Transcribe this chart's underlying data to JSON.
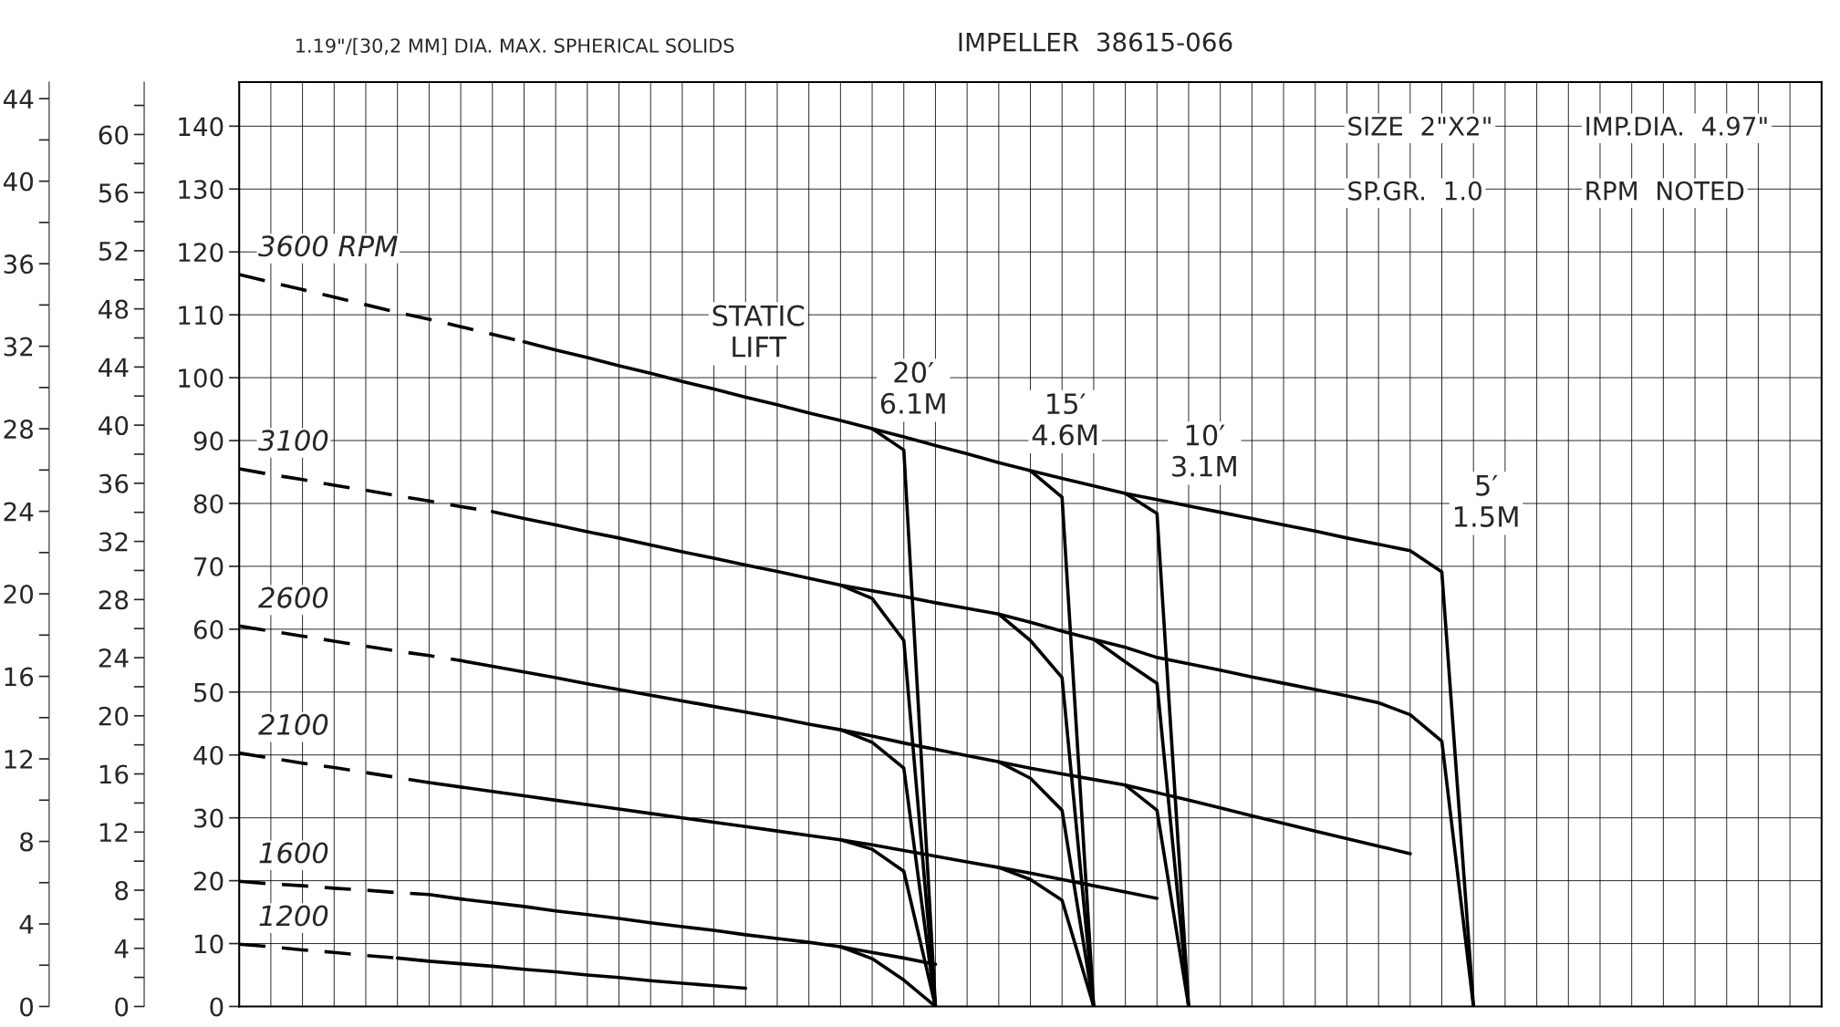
{
  "chart_data": {
    "type": "line",
    "categories": [
      null,
      null,
      null,
      null,
      null,
      null,
      null,
      null,
      null,
      null,
      null,
      null,
      null,
      null,
      null,
      null,
      null,
      null,
      null,
      null,
      null,
      null,
      null,
      null,
      null,
      null,
      null,
      null,
      null,
      null,
      null,
      null,
      null,
      null,
      null,
      null,
      null,
      null,
      null,
      null,
      null,
      null,
      null,
      null,
      null,
      null,
      null,
      null,
      null,
      null,
      null
    ],
    "ylim": [
      0,
      147
    ],
    "yticks": [
      0,
      10,
      20,
      30,
      40,
      50,
      60,
      70,
      80,
      90,
      100,
      110,
      120,
      130,
      140
    ],
    "y2lim": [
      0,
      63.6
    ],
    "y2ticks": [
      0,
      4,
      8,
      12,
      16,
      20,
      24,
      28,
      32,
      36,
      40,
      44,
      48,
      52,
      56,
      60
    ],
    "y3lim": [
      0,
      44.8
    ],
    "y3ticks": [
      0,
      4,
      8,
      12,
      16,
      20,
      24,
      28,
      32,
      36,
      40,
      44
    ],
    "tick_labels": "y",
    "grid": true,
    "legend": false,
    "marker": "none",
    "line_style": "solid",
    "annotations": [
      "1.19\"/[30,2 MM] DIA. MAX. SPHERICAL SOLIDS",
      "IMPELLER  38615-066",
      "SIZE  2\"X2\"",
      "IMP.DIA.  4.97\"",
      "SP.GR.  1.0",
      "RPM  NOTED",
      "STATIC\nLIFT",
      "20′\n6.1M",
      "15′\n4.6M",
      "10′\n3.1M",
      "5′\n1.5M"
    ],
    "series": [
      {
        "name": "3600 RPM",
        "color": "#000000",
        "line_style": "dashed",
        "values": [
          116.4,
          115.2,
          114.0,
          112.8,
          111.6,
          110.4,
          109.3,
          108.1,
          106.9,
          105.7,
          null,
          null,
          null,
          null,
          null,
          null,
          null,
          null,
          null,
          null,
          null,
          null,
          null,
          null,
          null,
          null,
          null,
          null,
          null,
          null,
          null,
          null,
          null,
          null,
          null,
          null,
          null,
          null,
          null,
          null,
          null,
          null,
          null,
          null,
          null,
          null,
          null,
          null,
          null,
          null,
          null
        ]
      },
      {
        "color": "#000000",
        "values": [
          null,
          null,
          null,
          null,
          null,
          null,
          null,
          null,
          null,
          105.7,
          104.4,
          103.2,
          101.9,
          100.7,
          99.4,
          98.2,
          96.9,
          95.7,
          94.4,
          93.2,
          91.9,
          90.6,
          89.2,
          87.9,
          86.5,
          85.2,
          84.0,
          82.8,
          81.6,
          80.6,
          79.6,
          78.6,
          77.6,
          76.6,
          75.6,
          74.5,
          73.5,
          72.5,
          69.1,
          0,
          null,
          null,
          null,
          null,
          null,
          null,
          null,
          null,
          null,
          null,
          null
        ]
      },
      {
        "color": "#000000",
        "values": [
          null,
          null,
          null,
          null,
          null,
          null,
          null,
          null,
          null,
          null,
          null,
          null,
          null,
          null,
          null,
          null,
          null,
          null,
          null,
          null,
          91.9,
          88.5,
          0,
          null,
          null,
          null,
          null,
          null,
          null,
          null,
          null,
          null,
          null,
          null,
          null,
          null,
          null,
          null,
          null,
          null,
          null,
          null,
          null,
          null,
          null,
          null,
          null,
          null,
          null,
          null,
          null
        ]
      },
      {
        "color": "#000000",
        "values": [
          null,
          null,
          null,
          null,
          null,
          null,
          null,
          null,
          null,
          null,
          null,
          null,
          null,
          null,
          null,
          null,
          null,
          null,
          null,
          null,
          null,
          null,
          null,
          null,
          null,
          85.2,
          81,
          0,
          null,
          null,
          null,
          null,
          null,
          null,
          null,
          null,
          null,
          null,
          null,
          null,
          null,
          null,
          null,
          null,
          null,
          null,
          null,
          null,
          null,
          null,
          null
        ]
      },
      {
        "color": "#000000",
        "values": [
          null,
          null,
          null,
          null,
          null,
          null,
          null,
          null,
          null,
          null,
          null,
          null,
          null,
          null,
          null,
          null,
          null,
          null,
          null,
          null,
          null,
          null,
          null,
          null,
          null,
          null,
          null,
          null,
          81.6,
          78.4,
          0,
          null,
          null,
          null,
          null,
          null,
          null,
          null,
          null,
          null,
          null,
          null,
          null,
          null,
          null,
          null,
          null,
          null,
          null,
          null,
          null
        ]
      },
      {
        "name": "3100",
        "color": "#000000",
        "line_style": "dashed",
        "values": [
          85.5,
          84.6,
          83.8,
          82.9,
          82.1,
          81.2,
          80.4,
          79.5,
          78.7,
          null,
          null,
          null,
          null,
          null,
          null,
          null,
          null,
          null,
          null,
          null,
          null,
          null,
          null,
          null,
          null,
          null,
          null,
          null,
          null,
          null,
          null,
          null,
          null,
          null,
          null,
          null,
          null,
          null,
          null,
          null,
          null,
          null,
          null,
          null,
          null,
          null,
          null,
          null,
          null,
          null,
          null
        ]
      },
      {
        "color": "#000000",
        "values": [
          null,
          null,
          null,
          null,
          null,
          null,
          null,
          null,
          78.7,
          77.6,
          76.6,
          75.5,
          74.5,
          73.4,
          72.3,
          71.3,
          70.2,
          69.2,
          68.1,
          67.0,
          66.1,
          65.2,
          64.2,
          63.3,
          62.4,
          61.1,
          59.7,
          58.4,
          57.1,
          55.5,
          54.5,
          53.5,
          52.4,
          51.4,
          50.4,
          49.4,
          48.3,
          46.4,
          42.2,
          0,
          null,
          null,
          null,
          null,
          null,
          null,
          null,
          null,
          null,
          null,
          null
        ]
      },
      {
        "color": "#000000",
        "values": [
          null,
          null,
          null,
          null,
          null,
          null,
          null,
          null,
          null,
          null,
          null,
          null,
          null,
          null,
          null,
          null,
          null,
          null,
          null,
          67.0,
          64.9,
          58.2,
          0,
          null,
          null,
          null,
          null,
          null,
          null,
          null,
          null,
          null,
          null,
          null,
          null,
          null,
          null,
          null,
          null,
          null,
          null,
          null,
          null,
          null,
          null,
          null,
          null,
          null,
          null,
          null,
          null
        ]
      },
      {
        "color": "#000000",
        "values": [
          null,
          null,
          null,
          null,
          null,
          null,
          null,
          null,
          null,
          null,
          null,
          null,
          null,
          null,
          null,
          null,
          null,
          null,
          null,
          null,
          null,
          null,
          null,
          null,
          62.4,
          58.2,
          52.3,
          0,
          null,
          null,
          null,
          null,
          null,
          null,
          null,
          null,
          null,
          null,
          null,
          null,
          null,
          null,
          null,
          null,
          null,
          null,
          null,
          null,
          null,
          null,
          null
        ]
      },
      {
        "color": "#000000",
        "values": [
          null,
          null,
          null,
          null,
          null,
          null,
          null,
          null,
          null,
          null,
          null,
          null,
          null,
          null,
          null,
          null,
          null,
          null,
          null,
          null,
          null,
          null,
          null,
          null,
          null,
          null,
          null,
          58.4,
          54.8,
          51.4,
          0,
          null,
          null,
          null,
          null,
          null,
          null,
          null,
          null,
          null,
          null,
          null,
          null,
          null,
          null,
          null,
          null,
          null,
          null,
          null,
          null
        ]
      },
      {
        "name": "2600",
        "color": "#000000",
        "line_style": "dashed",
        "values": [
          60.5,
          59.7,
          58.9,
          58.1,
          57.3,
          56.5,
          55.8,
          55.0,
          null,
          null,
          null,
          null,
          null,
          null,
          null,
          null,
          null,
          null,
          null,
          null,
          null,
          null,
          null,
          null,
          null,
          null,
          null,
          null,
          null,
          null,
          null,
          null,
          null,
          null,
          null,
          null,
          null,
          null,
          null,
          null,
          null,
          null,
          null,
          null,
          null,
          null,
          null,
          null,
          null,
          null,
          null
        ]
      },
      {
        "color": "#000000",
        "values": [
          null,
          null,
          null,
          null,
          null,
          null,
          null,
          55.0,
          54.1,
          53.2,
          52.3,
          51.3,
          50.4,
          49.5,
          48.6,
          47.7,
          46.8,
          45.9,
          44.9,
          44.0,
          43.0,
          41.9,
          40.9,
          39.9,
          38.9,
          37.9,
          37.0,
          36.1,
          35.2,
          34.0,
          32.8,
          31.6,
          30.3,
          29.1,
          27.9,
          26.7,
          25.5,
          24.3,
          null,
          null,
          null,
          null,
          null,
          null,
          null,
          null,
          null,
          null,
          null,
          null,
          null
        ]
      },
      {
        "color": "#000000",
        "values": [
          null,
          null,
          null,
          null,
          null,
          null,
          null,
          null,
          null,
          null,
          null,
          null,
          null,
          null,
          null,
          null,
          null,
          null,
          null,
          44.0,
          42.0,
          37.9,
          0,
          null,
          null,
          null,
          null,
          null,
          null,
          null,
          null,
          null,
          null,
          null,
          null,
          null,
          null,
          null,
          null,
          null,
          null,
          null,
          null,
          null,
          null,
          null,
          null,
          null,
          null,
          null,
          null
        ]
      },
      {
        "color": "#000000",
        "values": [
          null,
          null,
          null,
          null,
          null,
          null,
          null,
          null,
          null,
          null,
          null,
          null,
          null,
          null,
          null,
          null,
          null,
          null,
          null,
          null,
          null,
          null,
          null,
          null,
          38.9,
          36.3,
          31.2,
          0,
          null,
          null,
          null,
          null,
          null,
          null,
          null,
          null,
          null,
          null,
          null,
          null,
          null,
          null,
          null,
          null,
          null,
          null,
          null,
          null,
          null,
          null,
          null
        ]
      },
      {
        "color": "#000000",
        "values": [
          null,
          null,
          null,
          null,
          null,
          null,
          null,
          null,
          null,
          null,
          null,
          null,
          null,
          null,
          null,
          null,
          null,
          null,
          null,
          null,
          null,
          null,
          null,
          null,
          null,
          null,
          null,
          null,
          35.2,
          31.2,
          0,
          null,
          null,
          null,
          null,
          null,
          null,
          null,
          null,
          null,
          null,
          null,
          null,
          null,
          null,
          null,
          null,
          null,
          null,
          null,
          null
        ]
      },
      {
        "name": "2100",
        "color": "#000000",
        "line_style": "dashed",
        "values": [
          40.3,
          39.5,
          38.7,
          38.0,
          37.2,
          36.4,
          35.6,
          null,
          null,
          null,
          null,
          null,
          null,
          null,
          null,
          null,
          null,
          null,
          null,
          null,
          null,
          null,
          null,
          null,
          null,
          null,
          null,
          null,
          null,
          null,
          null,
          null,
          null,
          null,
          null,
          null,
          null,
          null,
          null,
          null,
          null,
          null,
          null,
          null,
          null,
          null,
          null,
          null,
          null,
          null,
          null
        ]
      },
      {
        "color": "#000000",
        "values": [
          null,
          null,
          null,
          null,
          null,
          null,
          35.6,
          34.9,
          34.2,
          33.5,
          32.8,
          32.1,
          31.4,
          30.7,
          30.0,
          29.3,
          28.6,
          27.9,
          27.2,
          26.5,
          25.7,
          24.8,
          23.9,
          23.0,
          22.1,
          21.2,
          20.2,
          19.2,
          18.2,
          17.2,
          null,
          null,
          null,
          null,
          null,
          null,
          null,
          null,
          null,
          null,
          null,
          null,
          null,
          null,
          null,
          null,
          null,
          null,
          null,
          null,
          null
        ]
      },
      {
        "color": "#000000",
        "values": [
          null,
          null,
          null,
          null,
          null,
          null,
          null,
          null,
          null,
          null,
          null,
          null,
          null,
          null,
          null,
          null,
          null,
          null,
          null,
          26.5,
          25.0,
          21.5,
          0,
          null,
          null,
          null,
          null,
          null,
          null,
          null,
          null,
          null,
          null,
          null,
          null,
          null,
          null,
          null,
          null,
          null,
          null,
          null,
          null,
          null,
          null,
          null,
          null,
          null,
          null,
          null,
          null
        ]
      },
      {
        "color": "#000000",
        "values": [
          null,
          null,
          null,
          null,
          null,
          null,
          null,
          null,
          null,
          null,
          null,
          null,
          null,
          null,
          null,
          null,
          null,
          null,
          null,
          null,
          null,
          null,
          null,
          null,
          22.1,
          20.2,
          16.9,
          0,
          null,
          null,
          null,
          null,
          null,
          null,
          null,
          null,
          null,
          null,
          null,
          null,
          null,
          null,
          null,
          null,
          null,
          null,
          null,
          null,
          null,
          null,
          null
        ]
      },
      {
        "name": "1600",
        "color": "#000000",
        "line_style": "dashed",
        "values": [
          19.9,
          19.5,
          19.2,
          18.8,
          18.5,
          18.1,
          17.8,
          null,
          null,
          null,
          null,
          null,
          null,
          null,
          null,
          null,
          null,
          null,
          null,
          null,
          null,
          null,
          null,
          null,
          null,
          null,
          null,
          null,
          null,
          null,
          null,
          null,
          null,
          null,
          null,
          null,
          null,
          null,
          null,
          null,
          null,
          null,
          null,
          null,
          null,
          null,
          null,
          null,
          null,
          null,
          null
        ]
      },
      {
        "color": "#000000",
        "values": [
          null,
          null,
          null,
          null,
          null,
          null,
          17.8,
          17.1,
          16.5,
          15.9,
          15.2,
          14.6,
          14.0,
          13.3,
          12.7,
          12.1,
          11.4,
          10.8,
          10.2,
          9.5,
          8.6,
          7.7,
          6.7,
          null,
          null,
          null,
          null,
          null,
          null,
          null,
          null,
          null,
          null,
          null,
          null,
          null,
          null,
          null,
          null,
          null,
          null,
          null,
          null,
          null,
          null,
          null,
          null,
          null,
          null,
          null,
          null
        ]
      },
      {
        "color": "#000000",
        "values": [
          null,
          null,
          null,
          null,
          null,
          null,
          null,
          null,
          null,
          null,
          null,
          null,
          null,
          null,
          null,
          null,
          null,
          null,
          null,
          9.5,
          7.6,
          4.2,
          0,
          null,
          null,
          null,
          null,
          null,
          null,
          null,
          null,
          null,
          null,
          null,
          null,
          null,
          null,
          null,
          null,
          null,
          null,
          null,
          null,
          null,
          null,
          null,
          null,
          null,
          null,
          null,
          null
        ]
      },
      {
        "name": "1200",
        "color": "#000000",
        "line_style": "dashed",
        "values": [
          9.9,
          9.5,
          9.0,
          8.6,
          8.1,
          7.7,
          null,
          null,
          null,
          null,
          null,
          null,
          null,
          null,
          null,
          null,
          null,
          null,
          null,
          null,
          null,
          null,
          null,
          null,
          null,
          null,
          null,
          null,
          null,
          null,
          null,
          null,
          null,
          null,
          null,
          null,
          null,
          null,
          null,
          null,
          null,
          null,
          null,
          null,
          null,
          null,
          null,
          null,
          null,
          null,
          null
        ]
      },
      {
        "color": "#000000",
        "values": [
          null,
          null,
          null,
          null,
          null,
          7.7,
          7.2,
          6.8,
          6.4,
          5.9,
          5.5,
          5.0,
          4.6,
          4.1,
          3.7,
          3.3,
          2.9,
          null,
          null,
          null,
          null,
          null,
          null,
          null,
          null,
          null,
          null,
          null,
          null,
          null,
          null,
          null,
          null,
          null,
          null,
          null,
          null,
          null,
          null,
          null,
          null,
          null,
          null,
          null,
          null,
          null,
          null,
          null,
          null,
          null,
          null
        ]
      }
    ]
  }
}
